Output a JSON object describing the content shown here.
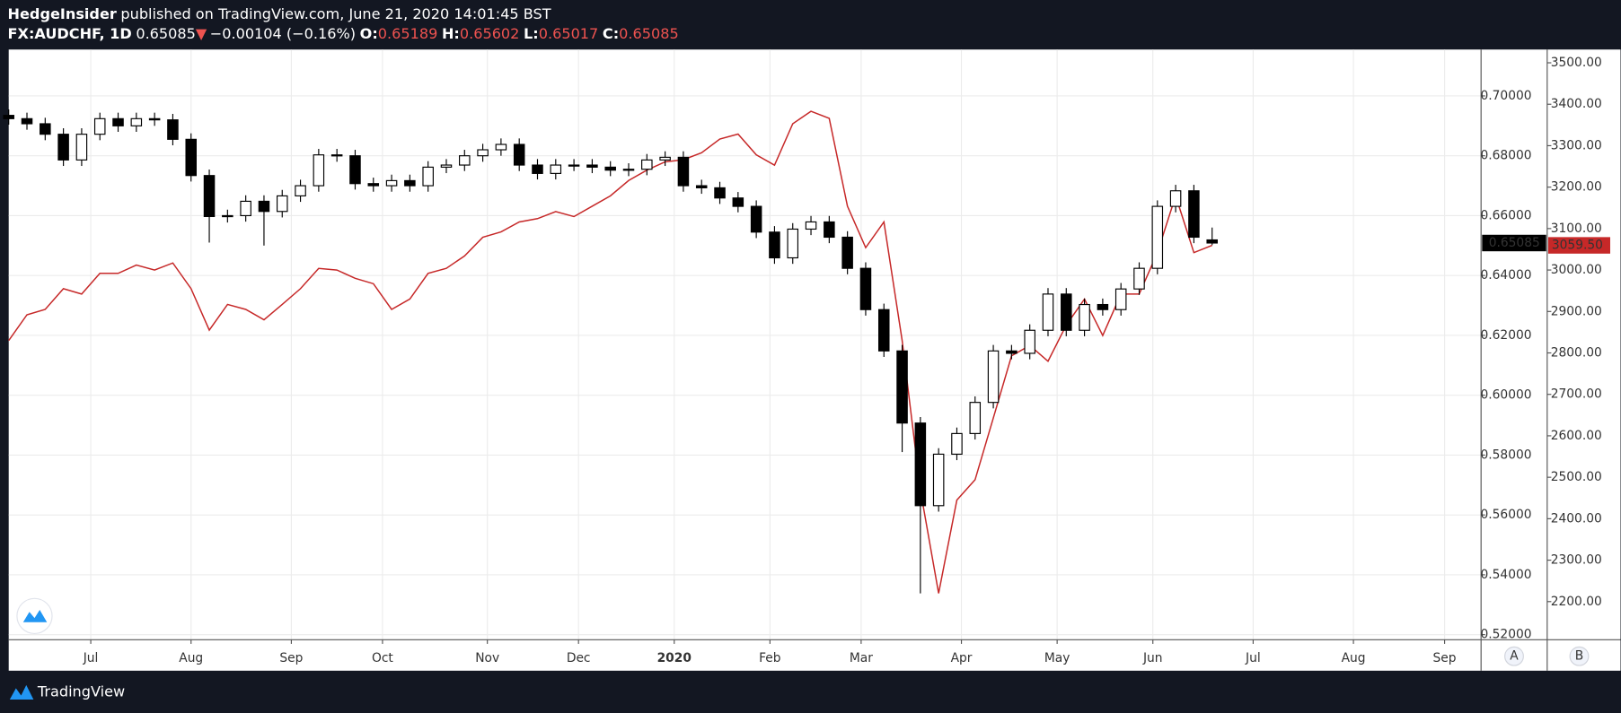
{
  "header": {
    "author": "HedgeInsider",
    "published": "published on TradingView.com, June 21, 2020 14:01:45 BST",
    "symbol": "FX:AUDCHF, 1D",
    "price": "0.65085",
    "arrow": "▼",
    "change": "−0.00104 (−0.16%)",
    "ohlc": [
      {
        "label": "O:",
        "value": "0.65189"
      },
      {
        "label": "H:",
        "value": "0.65602"
      },
      {
        "label": "L:",
        "value": "0.65017"
      },
      {
        "label": "C:",
        "value": "0.65085"
      }
    ]
  },
  "chart_data": {
    "type": "candlestick",
    "x": [
      0,
      4,
      8,
      12,
      16,
      20,
      24,
      28,
      32,
      36,
      40,
      44,
      48,
      52,
      56,
      60,
      64,
      68,
      72,
      76,
      80,
      84,
      88,
      92,
      96,
      100,
      104,
      108,
      112,
      116,
      120,
      124,
      128,
      132,
      136,
      140,
      144,
      148,
      152,
      156,
      160,
      164,
      168,
      172,
      176,
      180,
      184,
      188,
      192,
      196,
      200,
      204,
      208,
      212,
      216,
      220,
      224,
      228,
      232,
      236,
      240,
      244,
      248,
      252,
      256,
      260,
      264
    ],
    "open": [
      0.6935,
      0.6924,
      0.6907,
      0.6872,
      0.6786,
      0.6872,
      0.6924,
      0.69,
      0.6924,
      0.692,
      0.6855,
      0.6734,
      0.6597,
      0.66,
      0.6648,
      0.6614,
      0.6666,
      0.67,
      0.6803,
      0.68,
      0.6707,
      0.67,
      0.6717,
      0.67,
      0.6762,
      0.6769,
      0.68,
      0.682,
      0.6838,
      0.6769,
      0.6741,
      0.6769,
      0.6769,
      0.6762,
      0.6752,
      0.6755,
      0.6786,
      0.6795,
      0.67,
      0.6693,
      0.6659,
      0.6631,
      0.6545,
      0.6459,
      0.6555,
      0.6579,
      0.6528,
      0.6424,
      0.6286,
      0.6148,
      0.5907,
      0.5631,
      0.5803,
      0.5872,
      0.5976,
      0.6148,
      0.614,
      0.6217,
      0.6338,
      0.6217,
      0.6303,
      0.6286,
      0.6355,
      0.6424,
      0.6631,
      0.6683,
      0.65189
    ],
    "high": [
      0.6955,
      0.6944,
      0.6927,
      0.6892,
      0.6892,
      0.6944,
      0.6944,
      0.6944,
      0.6944,
      0.694,
      0.6875,
      0.6754,
      0.662,
      0.6668,
      0.6668,
      0.6686,
      0.672,
      0.6823,
      0.6823,
      0.682,
      0.6727,
      0.6737,
      0.6737,
      0.6782,
      0.6789,
      0.682,
      0.684,
      0.6858,
      0.6858,
      0.6789,
      0.6789,
      0.6789,
      0.6789,
      0.6782,
      0.6775,
      0.6806,
      0.6815,
      0.6815,
      0.672,
      0.6713,
      0.6679,
      0.6651,
      0.6565,
      0.6575,
      0.6599,
      0.6599,
      0.6548,
      0.6444,
      0.6306,
      0.6168,
      0.5927,
      0.5823,
      0.5892,
      0.5996,
      0.6168,
      0.6168,
      0.6237,
      0.6358,
      0.6358,
      0.6323,
      0.6323,
      0.6375,
      0.6444,
      0.6651,
      0.6703,
      0.6703,
      0.65602
    ],
    "low": [
      0.6904,
      0.6887,
      0.6852,
      0.6766,
      0.6766,
      0.6852,
      0.688,
      0.688,
      0.69,
      0.6835,
      0.6714,
      0.651,
      0.6577,
      0.658,
      0.65,
      0.6594,
      0.6646,
      0.668,
      0.678,
      0.6687,
      0.668,
      0.668,
      0.668,
      0.668,
      0.6742,
      0.6749,
      0.678,
      0.68,
      0.6749,
      0.6721,
      0.6721,
      0.6749,
      0.6742,
      0.6732,
      0.6732,
      0.6735,
      0.6766,
      0.668,
      0.6673,
      0.6639,
      0.6611,
      0.6525,
      0.6439,
      0.6439,
      0.6535,
      0.6508,
      0.6404,
      0.6266,
      0.6128,
      0.581,
      0.5338,
      0.5611,
      0.5783,
      0.5852,
      0.5956,
      0.612,
      0.612,
      0.6197,
      0.6197,
      0.6197,
      0.6266,
      0.6266,
      0.6335,
      0.6404,
      0.6611,
      0.6508,
      0.65017
    ],
    "close": [
      0.6924,
      0.6907,
      0.6872,
      0.6786,
      0.6872,
      0.6924,
      0.69,
      0.6924,
      0.692,
      0.6855,
      0.6734,
      0.6597,
      0.66,
      0.6648,
      0.6614,
      0.6666,
      0.67,
      0.6803,
      0.68,
      0.6707,
      0.67,
      0.6717,
      0.67,
      0.6762,
      0.6769,
      0.68,
      0.682,
      0.6838,
      0.6769,
      0.6741,
      0.6769,
      0.6769,
      0.6762,
      0.6752,
      0.6755,
      0.6786,
      0.6795,
      0.67,
      0.6693,
      0.6659,
      0.6631,
      0.6545,
      0.6459,
      0.6555,
      0.6579,
      0.6528,
      0.6424,
      0.6286,
      0.6148,
      0.5907,
      0.5631,
      0.5803,
      0.5872,
      0.5976,
      0.6148,
      0.614,
      0.6217,
      0.6338,
      0.6217,
      0.6303,
      0.6286,
      0.6355,
      0.6424,
      0.6631,
      0.6683,
      0.6528,
      0.65085
    ],
    "up_color": "#ffffff",
    "down_color": "#000000",
    "overlay": {
      "type": "line",
      "color": "#c62828",
      "axis": "y2",
      "values": [
        2830,
        2892,
        2905,
        2955,
        2942,
        2992,
        2992,
        3012,
        3000,
        3017,
        2955,
        2855,
        2917,
        2905,
        2880,
        2917,
        2955,
        3004,
        3000,
        2980,
        2967,
        2905,
        2930,
        2992,
        3004,
        3034,
        3079,
        3092,
        3116,
        3124,
        3141,
        3129,
        3154,
        3179,
        3216,
        3241,
        3261,
        3266,
        3283,
        3316,
        3328,
        3278,
        3253,
        3353,
        3383,
        3366,
        3154,
        3054,
        3116,
        2830,
        2469,
        2220,
        2445,
        2494,
        2643,
        2793,
        2818,
        2780,
        2867,
        2930,
        2842,
        2942,
        2942,
        3042,
        3179,
        3042,
        3059.5
      ]
    },
    "last_label": "0.65085",
    "last_label2": "3059.50",
    "xlim": [
      0,
      323
    ],
    "xticks": [
      {
        "value": 18,
        "label": "Jul"
      },
      {
        "value": 40,
        "label": "Aug"
      },
      {
        "value": 62,
        "label": "Sep"
      },
      {
        "value": 82,
        "label": "Oct"
      },
      {
        "value": 105,
        "label": "Nov"
      },
      {
        "value": 125,
        "label": "Dec"
      },
      {
        "value": 146,
        "label": "2020"
      },
      {
        "value": 167,
        "label": "Feb"
      },
      {
        "value": 187,
        "label": "Mar"
      },
      {
        "value": 209,
        "label": "Apr"
      },
      {
        "value": 230,
        "label": "May"
      },
      {
        "value": 251,
        "label": "Jun"
      },
      {
        "value": 273,
        "label": "Jul"
      },
      {
        "value": 295,
        "label": "Aug"
      },
      {
        "value": 315,
        "label": "Sep"
      }
    ],
    "ylim": [
      0.5183,
      0.7155
    ],
    "yticks": [
      {
        "value": 0.52,
        "label": "0.52000"
      },
      {
        "value": 0.54,
        "label": "0.54000"
      },
      {
        "value": 0.56,
        "label": "0.56000"
      },
      {
        "value": 0.58,
        "label": "0.58000"
      },
      {
        "value": 0.6,
        "label": "0.60000"
      },
      {
        "value": 0.62,
        "label": "0.62000"
      },
      {
        "value": 0.64,
        "label": "0.64000"
      },
      {
        "value": 0.66,
        "label": "0.66000"
      },
      {
        "value": 0.68,
        "label": "0.68000"
      },
      {
        "value": 0.7,
        "label": "0.70000"
      }
    ],
    "y2lim": [
      2108,
      3532
    ],
    "y2ticks": [
      {
        "value": 2200,
        "label": "2200.00"
      },
      {
        "value": 2300,
        "label": "2300.00"
      },
      {
        "value": 2400,
        "label": "2400.00"
      },
      {
        "value": 2500,
        "label": "2500.00"
      },
      {
        "value": 2600,
        "label": "2600.00"
      },
      {
        "value": 2700,
        "label": "2700.00"
      },
      {
        "value": 2800,
        "label": "2800.00"
      },
      {
        "value": 2900,
        "label": "2900.00"
      },
      {
        "value": 3000,
        "label": "3000.00"
      },
      {
        "value": 3100,
        "label": "3100.00"
      },
      {
        "value": 3200,
        "label": "3200.00"
      },
      {
        "value": 3300,
        "label": "3300.00"
      },
      {
        "value": 3400,
        "label": "3400.00"
      },
      {
        "value": 3500,
        "label": "3500.00"
      }
    ],
    "grid": true
  },
  "footer": {
    "brand": "TradingView"
  },
  "axis_buttons": [
    "A",
    "B"
  ]
}
